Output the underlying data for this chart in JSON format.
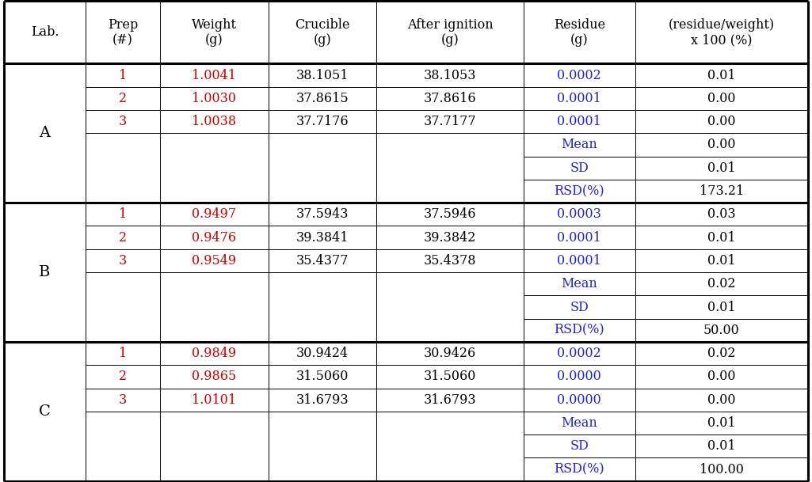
{
  "labs": [
    "A",
    "B",
    "C"
  ],
  "data": {
    "A": {
      "rows": [
        [
          "1",
          "1.0041",
          "38.1051",
          "38.1053",
          "0.0002",
          "0.01"
        ],
        [
          "2",
          "1.0030",
          "37.8615",
          "37.8616",
          "0.0001",
          "0.00"
        ],
        [
          "3",
          "1.0038",
          "37.7176",
          "37.7177",
          "0.0001",
          "0.00"
        ]
      ],
      "stats": [
        [
          "Mean",
          "0.00"
        ],
        [
          "SD",
          "0.01"
        ],
        [
          "RSD(%)",
          "173.21"
        ]
      ]
    },
    "B": {
      "rows": [
        [
          "1",
          "0.9497",
          "37.5943",
          "37.5946",
          "0.0003",
          "0.03"
        ],
        [
          "2",
          "0.9476",
          "39.3841",
          "39.3842",
          "0.0001",
          "0.01"
        ],
        [
          "3",
          "0.9549",
          "35.4377",
          "35.4378",
          "0.0001",
          "0.01"
        ]
      ],
      "stats": [
        [
          "Mean",
          "0.02"
        ],
        [
          "SD",
          "0.01"
        ],
        [
          "RSD(%)",
          "50.00"
        ]
      ]
    },
    "C": {
      "rows": [
        [
          "1",
          "0.9849",
          "30.9424",
          "30.9426",
          "0.0002",
          "0.02"
        ],
        [
          "2",
          "0.9865",
          "31.5060",
          "31.5060",
          "0.0000",
          "0.00"
        ],
        [
          "3",
          "1.0101",
          "31.6793",
          "31.6793",
          "0.0000",
          "0.00"
        ]
      ],
      "stats": [
        [
          "Mean",
          "0.01"
        ],
        [
          "SD",
          "0.01"
        ],
        [
          "RSD(%)",
          "100.00"
        ]
      ]
    }
  },
  "col_headers": [
    "Lab.",
    "Prep\n(#)",
    "Weight\n(g)",
    "Crucible\n(g)",
    "After ignition\n(g)",
    "Residue\n(g)",
    "(residue/weight)\nx 100 (%)"
  ],
  "text_black": "#000000",
  "text_red": "#cc0000",
  "text_blue": "#2222cc",
  "font_size": 11.5,
  "lab_font_size": 14
}
